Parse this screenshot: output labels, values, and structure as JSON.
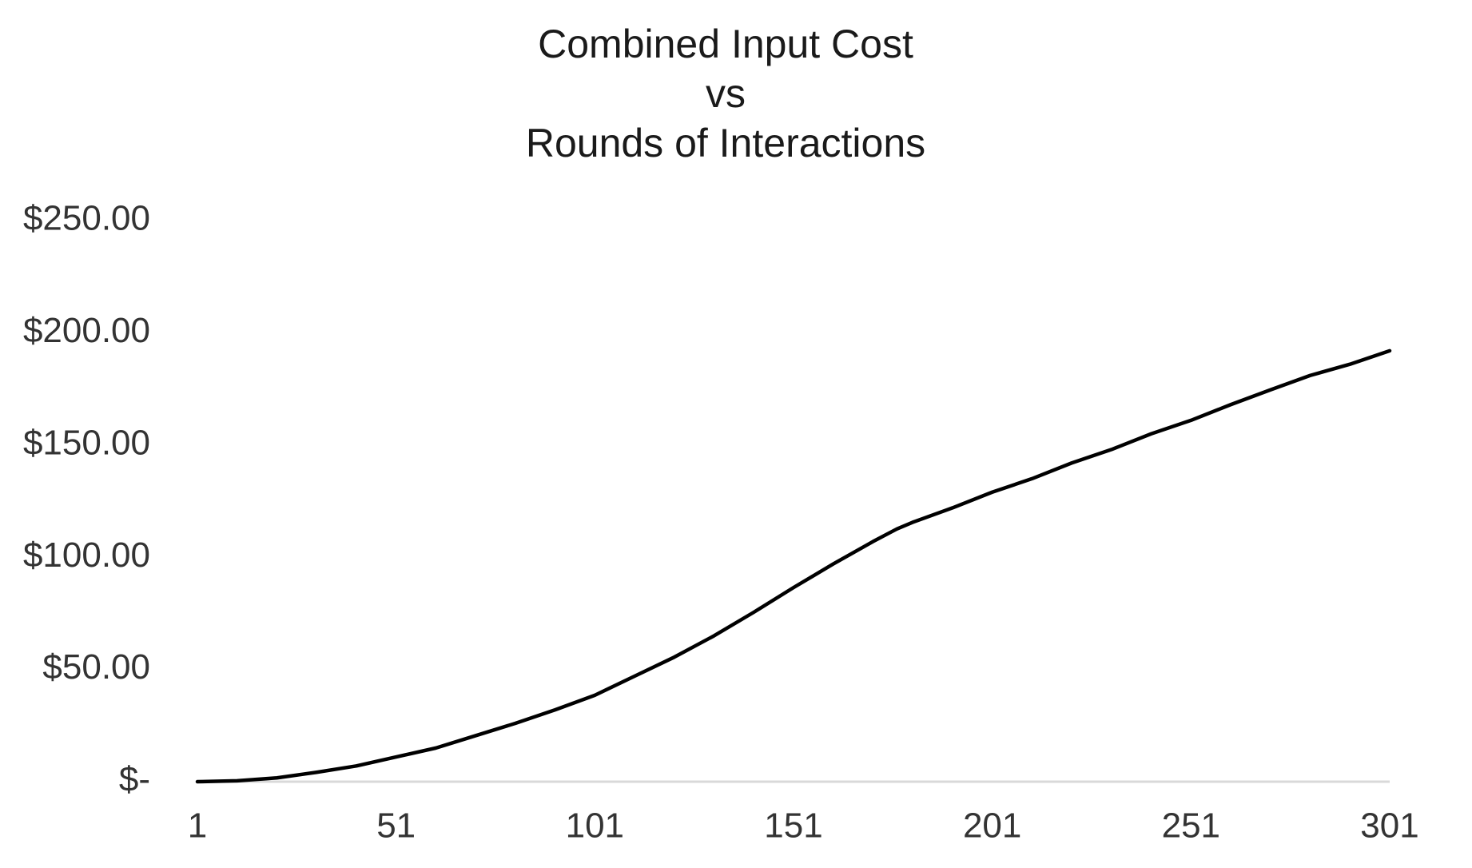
{
  "chart_data": {
    "type": "line",
    "title_lines": [
      "Combined Input Cost",
      "vs",
      "Rounds of Interactions"
    ],
    "x": [
      1,
      11,
      21,
      31,
      41,
      51,
      61,
      71,
      81,
      91,
      101,
      111,
      121,
      131,
      141,
      151,
      161,
      171,
      177,
      181,
      191,
      201,
      211,
      221,
      231,
      241,
      251,
      261,
      271,
      281,
      291,
      301
    ],
    "series": [
      {
        "name": "Combined Input Cost",
        "color": "#000000",
        "values": [
          0,
          0.4,
          1.7,
          4.2,
          7,
          11,
          15,
          20.5,
          26,
          32,
          38.5,
          47,
          55.5,
          65,
          75.5,
          86.5,
          97,
          107,
          112.6,
          115.6,
          122,
          129,
          135,
          142,
          148,
          155,
          161,
          168,
          174.6,
          181,
          186,
          192
        ]
      }
    ],
    "xlim": [
      1,
      301
    ],
    "xticks": [
      1,
      51,
      101,
      151,
      201,
      251,
      301
    ],
    "ylim": [
      0,
      250
    ],
    "yticks": [
      {
        "value": 0,
        "label": "$-"
      },
      {
        "value": 50,
        "label": "$50.00"
      },
      {
        "value": 100,
        "label": "$100.00"
      },
      {
        "value": 150,
        "label": "$150.00"
      },
      {
        "value": 200,
        "label": "$200.00"
      },
      {
        "value": 250,
        "label": "$250.00"
      }
    ],
    "grid": false
  }
}
